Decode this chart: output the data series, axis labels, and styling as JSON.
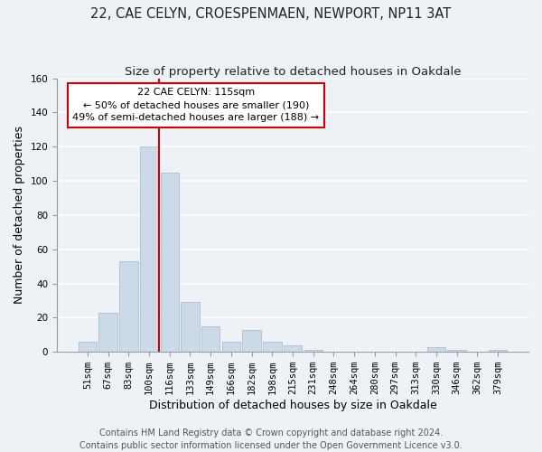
{
  "title": "22, CAE CELYN, CROESPENMAEN, NEWPORT, NP11 3AT",
  "subtitle": "Size of property relative to detached houses in Oakdale",
  "xlabel": "Distribution of detached houses by size in Oakdale",
  "ylabel": "Number of detached properties",
  "bar_color": "#ccd9e8",
  "bar_edgecolor": "#aabfd4",
  "categories": [
    "51sqm",
    "67sqm",
    "83sqm",
    "100sqm",
    "116sqm",
    "133sqm",
    "149sqm",
    "166sqm",
    "182sqm",
    "198sqm",
    "215sqm",
    "231sqm",
    "248sqm",
    "264sqm",
    "280sqm",
    "297sqm",
    "313sqm",
    "330sqm",
    "346sqm",
    "362sqm",
    "379sqm"
  ],
  "values": [
    6,
    23,
    53,
    120,
    105,
    29,
    15,
    6,
    13,
    6,
    4,
    1,
    0,
    0,
    0,
    0,
    0,
    3,
    1,
    0,
    1
  ],
  "ylim": [
    0,
    160
  ],
  "yticks": [
    0,
    20,
    40,
    60,
    80,
    100,
    120,
    140,
    160
  ],
  "annotation_title": "22 CAE CELYN: 115sqm",
  "annotation_line1": "← 50% of detached houses are smaller (190)",
  "annotation_line2": "49% of semi-detached houses are larger (188) →",
  "footer1": "Contains HM Land Registry data © Crown copyright and database right 2024.",
  "footer2": "Contains public sector information licensed under the Open Government Licence v3.0.",
  "ref_line_color": "#cc0000",
  "background_color": "#eef2f7",
  "grid_color": "#ffffff",
  "title_fontsize": 10.5,
  "subtitle_fontsize": 9.5,
  "tick_fontsize": 7.5,
  "label_fontsize": 9,
  "annotation_fontsize": 8,
  "footer_fontsize": 7
}
